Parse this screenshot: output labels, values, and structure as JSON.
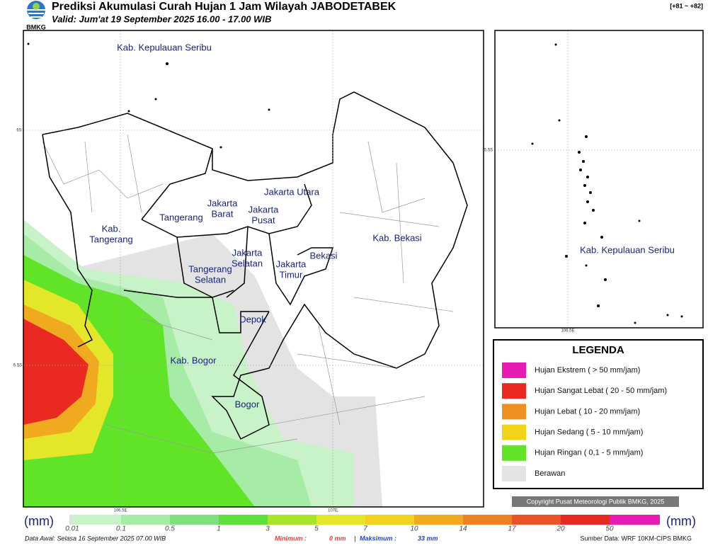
{
  "header": {
    "title": "Prediksi Akumulasi Curah Hujan 1 Jam Wilayah JABODETABEK",
    "subtitle": "Valid: Jum'at 19 September 2025 16.00 - 17.00 WIB",
    "logo": "BMKG",
    "code": "[+81 ~ +82]"
  },
  "map": {
    "regions": [
      {
        "lines": [
          "Kab. Kepulauan Seribu"
        ]
      },
      {
        "lines": [
          "Jakarta Utara"
        ]
      },
      {
        "lines": [
          "Jakarta",
          "Barat"
        ]
      },
      {
        "lines": [
          "Jakarta",
          "Pusat"
        ]
      },
      {
        "lines": [
          "Tangerang"
        ]
      },
      {
        "lines": [
          "Kab.",
          "Tangerang"
        ]
      },
      {
        "lines": [
          "Jakarta",
          "Selatan"
        ]
      },
      {
        "lines": [
          "Jakarta",
          "Timur"
        ]
      },
      {
        "lines": [
          "Bekasi"
        ]
      },
      {
        "lines": [
          "Kab. Bekasi"
        ]
      },
      {
        "lines": [
          "Tangerang",
          "Selatan"
        ]
      },
      {
        "lines": [
          "Depok"
        ]
      },
      {
        "lines": [
          "Kab. Bogor"
        ]
      },
      {
        "lines": [
          "Bogor"
        ]
      }
    ],
    "lat_labels": [
      "6S",
      "6.5S"
    ],
    "lon_labels": [
      "106.5E",
      "107E"
    ]
  },
  "inset": {
    "label": "Kab. Kepulauan Seribu",
    "lat_label": "5.5S",
    "lon_label": "106.5E"
  },
  "legend": {
    "title": "LEGENDA",
    "items": [
      {
        "label": "Hujan Ekstrem ( > 50 mm/jam)",
        "color": "#e61cb4"
      },
      {
        "label": "Hujan Sangat Lebat ( 20 - 50 mm/jam)",
        "color": "#ea2a22"
      },
      {
        "label": "Hujan Lebat ( 10 - 20 mm/jam)",
        "color": "#ef8f1f"
      },
      {
        "label": "Hujan Sedang ( 5 - 10 mm/jam)",
        "color": "#f0d41a"
      },
      {
        "label": "Hujan Ringan ( 0,1 - 5 mm/jam)",
        "color": "#61e428"
      },
      {
        "label": "Berawan",
        "color": "#e4e4e4"
      }
    ]
  },
  "copyright": "Copyright Pusat Meteorologi Publik BMKG, 2025",
  "colorbar": {
    "unit": "(mm)",
    "ticks": [
      0.01,
      0.1,
      0.5,
      1,
      3,
      5,
      7,
      10,
      14,
      17,
      20,
      50
    ],
    "colors": [
      "#e0e0e0",
      "#c8f2c8",
      "#a6eba6",
      "#7fe07f",
      "#5ee03a",
      "#a6e52a",
      "#e4e62a",
      "#f2d21e",
      "#f0aa20",
      "#ec8224",
      "#e85328",
      "#e62a22",
      "#e61cb4"
    ]
  },
  "footer": {
    "data_awal": "Data Awal: Selasa 16 September 2025 07.00 WIB",
    "min_label": "Minimum :",
    "min_value": "0 mm",
    "separator": "|",
    "max_label": "Maksimum :",
    "max_value": "33 mm",
    "source": "Sumber Data: WRF 10KM-CIPS BMKG"
  }
}
